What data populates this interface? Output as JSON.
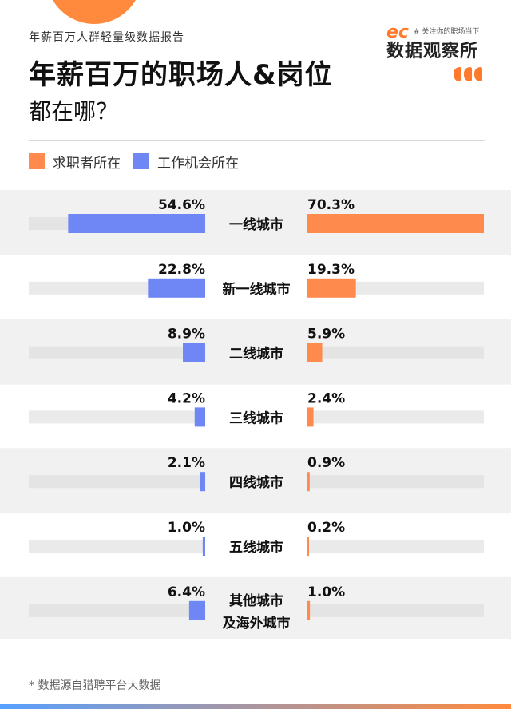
{
  "header": {
    "pretitle": "年薪百万人群轻量级数据报告",
    "title_line1": "年薪百万的职场人&岗位",
    "title_line2": "都在哪？"
  },
  "brand": {
    "mark": "ec",
    "slogan": "# 关注你的职场当下",
    "name": "数据观察所"
  },
  "colors": {
    "seekers": "#ff8a4d",
    "jobs": "#6f86f5",
    "row_bg": "#f1f1f1",
    "track": "#dcdcdc"
  },
  "chart_data": {
    "type": "bar",
    "orientation": "horizontal-butterfly",
    "categories": [
      "一线城市",
      "新一线城市",
      "二线城市",
      "三线城市",
      "四线城市",
      "五线城市",
      "其他城市\n及海外城市"
    ],
    "series": [
      {
        "name": "工作机会所在",
        "values": [
          54.6,
          22.8,
          8.9,
          4.2,
          2.1,
          1.0,
          6.4
        ],
        "labels": [
          "54.6%",
          "22.8%",
          "8.9%",
          "4.2%",
          "2.1%",
          "1.0%",
          "6.4%"
        ]
      },
      {
        "name": "求职者所在",
        "values": [
          70.3,
          19.3,
          5.9,
          2.4,
          0.9,
          0.2,
          1.0
        ],
        "labels": [
          "70.3%",
          "19.3%",
          "5.9%",
          "2.4%",
          "0.9%",
          "0.2%",
          "1.0%"
        ]
      }
    ],
    "xlim": [
      0,
      70.3
    ]
  },
  "footnote": "* 数据源自猎聘平台大数据"
}
